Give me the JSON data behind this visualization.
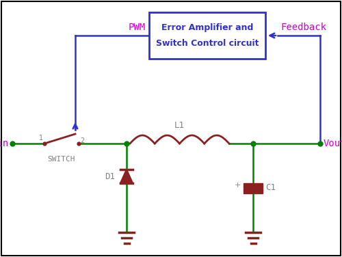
{
  "background_color": "#ffffff",
  "border_color": "#000000",
  "green": "#008000",
  "dark_red": "#8B2020",
  "blue": "#3030CC",
  "magenta": "#CC00CC",
  "gray": "#808080",
  "box_text_line1": "Error Amplifier and",
  "box_text_line2": "Switch Control circuit",
  "label_PWM": "PWM",
  "label_Feedback": "Feedback",
  "label_Vin": "Vin",
  "label_Vout": "Vout",
  "label_SWITCH": "SWITCH",
  "label_L1": "L1",
  "label_D1": "D1",
  "label_C1": "C1",
  "label_1": "1",
  "label_2": "2",
  "label_plus": "+"
}
